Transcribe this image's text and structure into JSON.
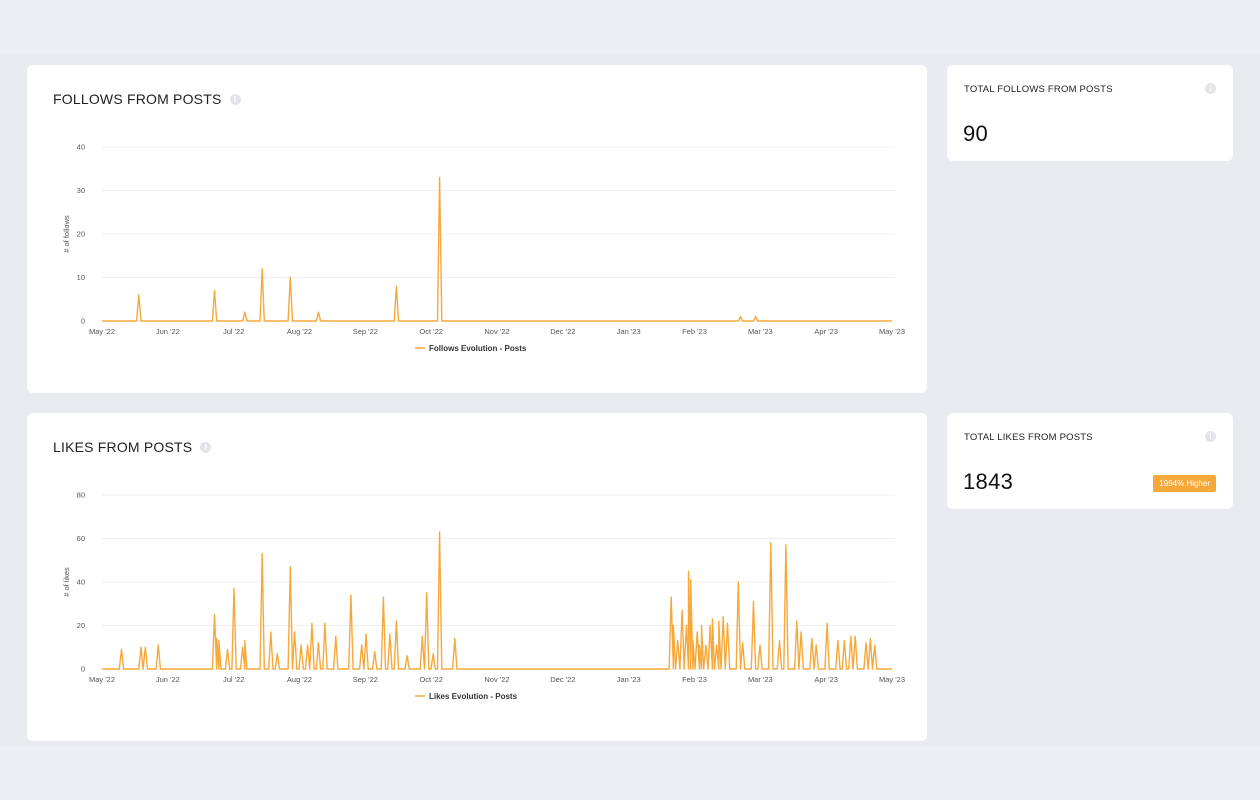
{
  "colors": {
    "accent": "#f7a83a",
    "grid": "#f0f0f0",
    "card": "#ffffff",
    "background": "#eceef3"
  },
  "follows_card": {
    "title": "FOLLOWS FROM POSTS",
    "info_icon": "info-icon"
  },
  "likes_card": {
    "title": "LIKES FROM POSTS",
    "info_icon": "info-icon"
  },
  "follows_stat": {
    "title": "TOTAL FOLLOWS FROM POSTS",
    "value": "90"
  },
  "likes_stat": {
    "title": "TOTAL LIKES FROM POSTS",
    "value": "1843",
    "badge": "1994% Higher"
  },
  "chart_data": [
    {
      "type": "line",
      "title": "FOLLOWS FROM POSTS",
      "xlabel": "",
      "ylabel": "# of follows",
      "ylim": [
        0,
        40
      ],
      "yticks": [
        0,
        10,
        20,
        30,
        40
      ],
      "xlim": [
        "2022-05-01",
        "2023-05-01"
      ],
      "xticks": [
        "May '22",
        "Jun '22",
        "Jul '22",
        "Aug '22",
        "Sep '22",
        "Oct '22",
        "Nov '22",
        "Dec '22",
        "Jan '23",
        "Feb '23",
        "Mar '23",
        "Apr '23",
        "May '23"
      ],
      "grid": true,
      "legend": "bottom-center",
      "series": [
        {
          "name": "Follows Evolution - Posts",
          "points": [
            [
              "2022-05-18",
              6
            ],
            [
              "2022-06-22",
              7
            ],
            [
              "2022-07-06",
              2
            ],
            [
              "2022-07-14",
              12
            ],
            [
              "2022-07-27",
              10
            ],
            [
              "2022-08-09",
              2
            ],
            [
              "2022-09-14",
              8
            ],
            [
              "2022-10-04",
              33
            ],
            [
              "2023-02-20",
              1
            ],
            [
              "2023-02-27",
              1
            ]
          ]
        }
      ]
    },
    {
      "type": "line",
      "title": "LIKES FROM POSTS",
      "xlabel": "",
      "ylabel": "# of likes",
      "ylim": [
        0,
        80
      ],
      "yticks": [
        0,
        20,
        40,
        60,
        80
      ],
      "xlim": [
        "2022-05-01",
        "2023-05-01"
      ],
      "xticks": [
        "May '22",
        "Jun '22",
        "Jul '22",
        "Aug '22",
        "Sep '22",
        "Oct '22",
        "Nov '22",
        "Dec '22",
        "Jan '23",
        "Feb '23",
        "Mar '23",
        "Apr '23",
        "May '23"
      ],
      "grid": true,
      "legend": "bottom-center",
      "series": [
        {
          "name": "Likes Evolution - Posts",
          "points": [
            [
              "2022-05-10",
              9
            ],
            [
              "2022-05-19",
              10
            ],
            [
              "2022-05-21",
              10
            ],
            [
              "2022-05-27",
              11
            ],
            [
              "2022-06-22",
              25
            ],
            [
              "2022-06-23",
              14
            ],
            [
              "2022-06-24",
              13
            ],
            [
              "2022-06-28",
              9
            ],
            [
              "2022-07-01",
              37
            ],
            [
              "2022-07-05",
              10
            ],
            [
              "2022-07-06",
              13
            ],
            [
              "2022-07-14",
              53
            ],
            [
              "2022-07-18",
              17
            ],
            [
              "2022-07-21",
              7
            ],
            [
              "2022-07-27",
              47
            ],
            [
              "2022-07-29",
              17
            ],
            [
              "2022-08-01",
              11
            ],
            [
              "2022-08-04",
              11
            ],
            [
              "2022-08-06",
              21
            ],
            [
              "2022-08-09",
              12
            ],
            [
              "2022-08-12",
              21
            ],
            [
              "2022-08-17",
              15
            ],
            [
              "2022-08-24",
              34
            ],
            [
              "2022-08-29",
              11
            ],
            [
              "2022-08-31",
              16
            ],
            [
              "2022-09-04",
              8
            ],
            [
              "2022-09-08",
              33
            ],
            [
              "2022-09-11",
              16
            ],
            [
              "2022-09-14",
              22
            ],
            [
              "2022-09-19",
              6
            ],
            [
              "2022-09-26",
              15
            ],
            [
              "2022-09-28",
              35
            ],
            [
              "2022-10-01",
              7
            ],
            [
              "2022-10-04",
              63
            ],
            [
              "2022-10-11",
              14
            ],
            [
              "2023-01-19",
              33
            ],
            [
              "2023-01-20",
              20
            ],
            [
              "2023-01-22",
              13
            ],
            [
              "2023-01-24",
              27
            ],
            [
              "2023-01-26",
              20
            ],
            [
              "2023-01-27",
              45
            ],
            [
              "2023-01-28",
              41
            ],
            [
              "2023-01-29",
              13
            ],
            [
              "2023-01-31",
              17
            ],
            [
              "2023-02-01",
              11
            ],
            [
              "2023-02-02",
              20
            ],
            [
              "2023-02-04",
              11
            ],
            [
              "2023-02-06",
              20
            ],
            [
              "2023-02-07",
              23
            ],
            [
              "2023-02-09",
              11
            ],
            [
              "2023-02-10",
              22
            ],
            [
              "2023-02-12",
              24
            ],
            [
              "2023-02-14",
              21
            ],
            [
              "2023-02-19",
              40
            ],
            [
              "2023-02-21",
              12
            ],
            [
              "2023-02-26",
              31
            ],
            [
              "2023-03-01",
              11
            ],
            [
              "2023-03-06",
              58
            ],
            [
              "2023-03-10",
              13
            ],
            [
              "2023-03-13",
              57
            ],
            [
              "2023-03-18",
              22
            ],
            [
              "2023-03-20",
              17
            ],
            [
              "2023-03-25",
              14
            ],
            [
              "2023-03-27",
              11
            ],
            [
              "2023-04-01",
              21
            ],
            [
              "2023-04-06",
              13
            ],
            [
              "2023-04-09",
              13
            ],
            [
              "2023-04-12",
              15
            ],
            [
              "2023-04-14",
              15
            ],
            [
              "2023-04-19",
              12
            ],
            [
              "2023-04-21",
              14
            ],
            [
              "2023-04-23",
              11
            ]
          ]
        }
      ]
    }
  ]
}
